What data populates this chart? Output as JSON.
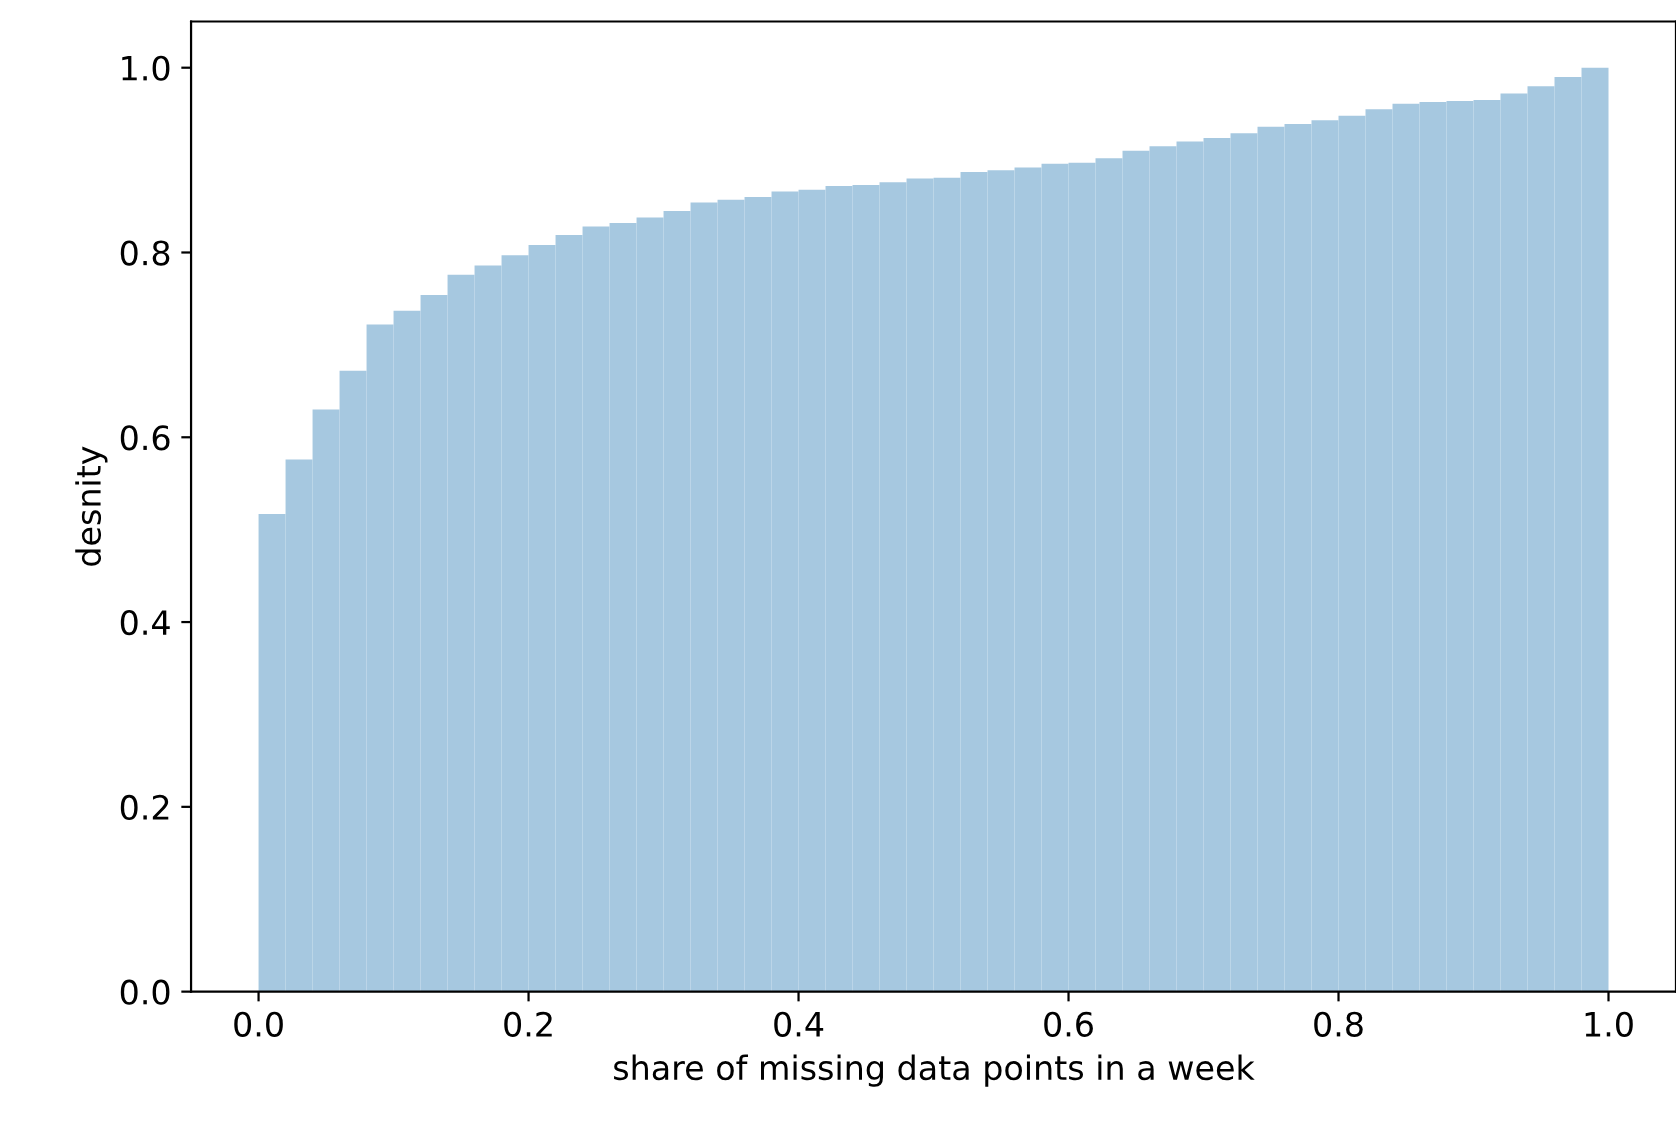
{
  "chart_data": {
    "type": "histogram",
    "xlabel": "share of missing data points in a week",
    "ylabel": "desnity",
    "bins": [
      0.0,
      0.02,
      0.04,
      0.06,
      0.08,
      0.1,
      0.12,
      0.14,
      0.16,
      0.18,
      0.2,
      0.22,
      0.24,
      0.26,
      0.28,
      0.3,
      0.32,
      0.34,
      0.36,
      0.38,
      0.4,
      0.42,
      0.44,
      0.46,
      0.48,
      0.5,
      0.52,
      0.54,
      0.56,
      0.58,
      0.6,
      0.62,
      0.64,
      0.66,
      0.68,
      0.7,
      0.72,
      0.74,
      0.76,
      0.78,
      0.8,
      0.82,
      0.84,
      0.86,
      0.88,
      0.9,
      0.92,
      0.94,
      0.96,
      0.98,
      1.0
    ],
    "values": [
      0.517,
      0.576,
      0.63,
      0.672,
      0.722,
      0.737,
      0.754,
      0.776,
      0.786,
      0.797,
      0.808,
      0.819,
      0.828,
      0.832,
      0.838,
      0.845,
      0.854,
      0.857,
      0.86,
      0.866,
      0.868,
      0.872,
      0.873,
      0.876,
      0.88,
      0.881,
      0.887,
      0.889,
      0.892,
      0.896,
      0.897,
      0.902,
      0.91,
      0.915,
      0.92,
      0.924,
      0.929,
      0.936,
      0.939,
      0.943,
      0.948,
      0.955,
      0.961,
      0.963,
      0.964,
      0.965,
      0.972,
      0.98,
      0.99,
      1.0
    ],
    "color": "#a6c8e0",
    "xlim": [
      -0.05,
      1.05
    ],
    "ylim": [
      0,
      1.05
    ],
    "xticks": [
      {
        "value": 0.0,
        "label": "0.0"
      },
      0.2,
      0.4,
      0.6,
      0.8,
      {
        "value": 1.0,
        "label": "1.0"
      }
    ],
    "yticks": [
      {
        "value": 0.0,
        "label": "0.0"
      },
      0.2,
      0.4,
      0.6,
      0.8,
      {
        "value": 1.0,
        "label": "1.0"
      }
    ],
    "grid": false
  }
}
